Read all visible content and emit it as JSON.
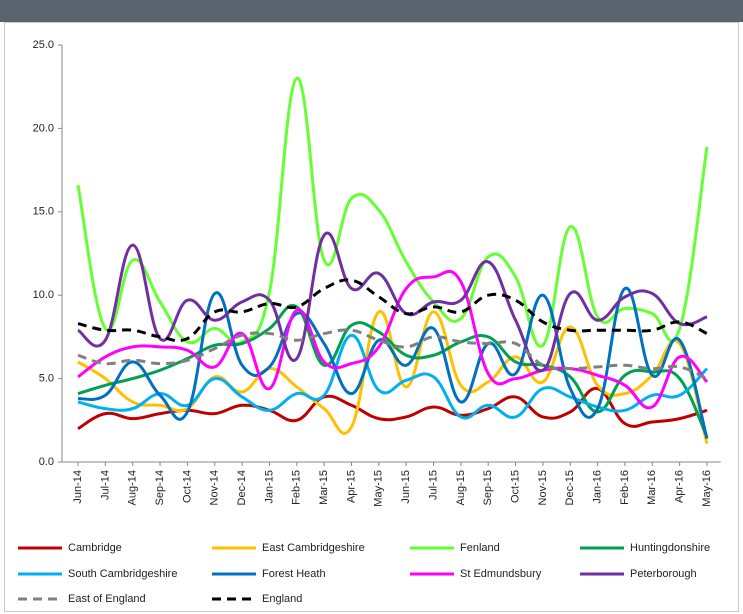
{
  "chart_data": {
    "type": "line",
    "categories": [
      "Jun-14",
      "Jul-14",
      "Aug-14",
      "Sep-14",
      "Oct-14",
      "Nov-14",
      "Dec-14",
      "Jan-15",
      "Feb-15",
      "Mar-15",
      "Apr-15",
      "May-15",
      "Jun-15",
      "Jul-15",
      "Aug-15",
      "Sep-15",
      "Oct-15",
      "Nov-15",
      "Dec-15",
      "Jan-16",
      "Feb-16",
      "Mar-16",
      "Apr-16",
      "May-16"
    ],
    "ylim": [
      0,
      25
    ],
    "yticks": [
      {
        "value": 0,
        "label": "0.0"
      },
      {
        "value": 5,
        "label": "5.0"
      },
      {
        "value": 10,
        "label": "10.0"
      },
      {
        "value": 15,
        "label": "15.0"
      },
      {
        "value": 20,
        "label": "20.0"
      },
      {
        "value": 25,
        "label": "25.0"
      }
    ],
    "grid": false,
    "legend": "bottom",
    "series": [
      {
        "name": "Cambridge",
        "color": "#c00000",
        "dashed": false,
        "values": [
          2.0,
          2.9,
          2.6,
          2.9,
          3.1,
          2.9,
          3.4,
          3.1,
          2.5,
          3.9,
          3.4,
          2.6,
          2.7,
          3.3,
          2.8,
          3.2,
          3.9,
          2.7,
          3.0,
          4.4,
          2.3,
          2.4,
          2.6,
          3.1
        ]
      },
      {
        "name": "East Cambridgeshire",
        "color": "#ffc000",
        "dashed": false,
        "values": [
          6.0,
          5.0,
          3.6,
          3.4,
          3.2,
          5.1,
          4.2,
          5.6,
          4.5,
          3.2,
          2.1,
          9.0,
          4.5,
          9.0,
          4.6,
          4.8,
          6.3,
          4.8,
          8.1,
          4.6,
          4.1,
          5.2,
          7.1,
          1.1
        ]
      },
      {
        "name": "Fenland",
        "color": "#66ff33",
        "dashed": false,
        "values": [
          16.6,
          8.0,
          12.1,
          9.6,
          7.2,
          8.0,
          7.2,
          10.2,
          23.0,
          12.1,
          15.8,
          15.1,
          12.0,
          9.6,
          8.6,
          12.3,
          11.1,
          7.0,
          14.1,
          8.7,
          9.2,
          8.9,
          8.0,
          18.9
        ]
      },
      {
        "name": "Huntingdonshire",
        "color": "#00a050",
        "dashed": false,
        "values": [
          4.1,
          4.6,
          5.0,
          5.5,
          6.2,
          7.0,
          7.1,
          8.0,
          9.3,
          5.8,
          8.2,
          7.8,
          6.4,
          6.4,
          7.2,
          7.5,
          6.0,
          5.8,
          5.1,
          3.0,
          5.2,
          5.4,
          5.0,
          1.5
        ]
      },
      {
        "name": "South Cambridgeshire",
        "color": "#00b0f0",
        "dashed": false,
        "values": [
          3.6,
          3.2,
          3.2,
          4.1,
          3.4,
          5.0,
          3.9,
          3.1,
          4.1,
          4.0,
          7.6,
          4.3,
          4.9,
          5.1,
          2.7,
          3.4,
          2.7,
          4.4,
          3.9,
          3.3,
          3.1,
          4.0,
          4.0,
          5.6
        ]
      },
      {
        "name": "Forest Heath",
        "color": "#0070c0",
        "dashed": false,
        "values": [
          3.8,
          4.0,
          6.0,
          4.0,
          3.0,
          10.1,
          5.8,
          5.7,
          8.9,
          7.1,
          4.1,
          7.3,
          5.8,
          8.0,
          3.6,
          7.1,
          5.3,
          10.0,
          4.4,
          3.2,
          10.4,
          5.2,
          7.3,
          1.4
        ]
      },
      {
        "name": "St Edmundsbury",
        "color": "#ff00ff",
        "dashed": false,
        "values": [
          5.1,
          6.3,
          6.9,
          6.9,
          6.7,
          5.7,
          7.7,
          4.4,
          9.1,
          6.0,
          5.9,
          6.9,
          10.4,
          11.1,
          10.8,
          5.3,
          5.0,
          5.5,
          5.6,
          5.2,
          4.6,
          3.3,
          6.3,
          4.8
        ]
      },
      {
        "name": "Peterborough",
        "color": "#7030a0",
        "dashed": false,
        "values": [
          7.9,
          7.3,
          13.0,
          7.4,
          9.7,
          8.5,
          9.6,
          9.7,
          6.2,
          13.6,
          10.4,
          11.3,
          8.9,
          9.6,
          9.7,
          12.0,
          8.5,
          5.5,
          10.1,
          8.5,
          9.9,
          10.1,
          8.3,
          8.7
        ]
      },
      {
        "name": "East of England",
        "color": "#808080",
        "dashed": true,
        "values": [
          6.4,
          5.9,
          6.1,
          5.9,
          6.1,
          6.8,
          7.6,
          7.7,
          7.3,
          7.7,
          7.9,
          7.3,
          6.9,
          7.5,
          7.2,
          7.1,
          7.1,
          5.8,
          5.6,
          5.7,
          5.8,
          5.6,
          5.7,
          5.0
        ]
      },
      {
        "name": "England",
        "color": "#000000",
        "dashed": true,
        "values": [
          8.3,
          7.9,
          7.9,
          7.5,
          7.4,
          9.0,
          9.0,
          9.5,
          9.3,
          10.4,
          10.9,
          9.9,
          8.9,
          9.3,
          9.0,
          10.0,
          9.7,
          8.4,
          7.9,
          7.9,
          7.9,
          7.9,
          8.4,
          7.7
        ]
      }
    ]
  }
}
